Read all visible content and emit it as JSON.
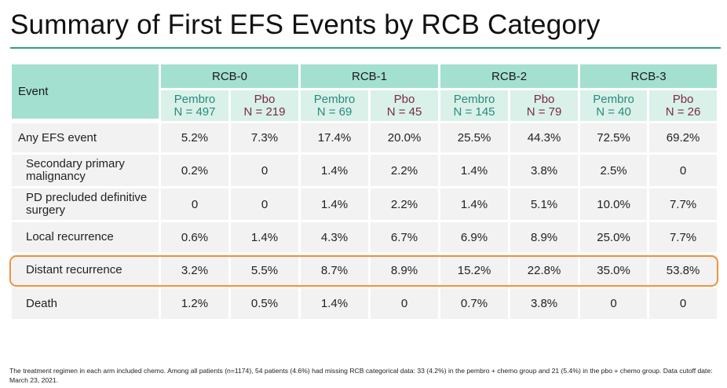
{
  "title": "Summary of First EFS Events by RCB Category",
  "colors": {
    "header": "#a3e0cf",
    "subheader": "#d9f1e9",
    "pembro_text": "#2a8a7e",
    "pbo_text": "#7b2a48",
    "highlight": "#f0923a",
    "rule": "#2aa287"
  },
  "table": {
    "event_header": "Event",
    "groups": [
      "RCB-0",
      "RCB-1",
      "RCB-2",
      "RCB-3"
    ],
    "arms": [
      {
        "name": "Pembro",
        "n": "N = 497"
      },
      {
        "name": "Pbo",
        "n": "N = 219"
      },
      {
        "name": "Pembro",
        "n": "N = 69"
      },
      {
        "name": "Pbo",
        "n": "N = 45"
      },
      {
        "name": "Pembro",
        "n": "N = 145"
      },
      {
        "name": "Pbo",
        "n": "N = 79"
      },
      {
        "name": "Pembro",
        "n": "N = 40"
      },
      {
        "name": "Pbo",
        "n": "N = 26"
      }
    ],
    "rows": [
      {
        "label": "Any EFS event",
        "values": [
          "5.2%",
          "7.3%",
          "17.4%",
          "20.0%",
          "25.5%",
          "44.3%",
          "72.5%",
          "69.2%"
        ]
      },
      {
        "label": "Secondary primary malignancy",
        "values": [
          "0.2%",
          "0",
          "1.4%",
          "2.2%",
          "1.4%",
          "3.8%",
          "2.5%",
          "0"
        ]
      },
      {
        "label": "PD precluded definitive surgery",
        "values": [
          "0",
          "0",
          "1.4%",
          "2.2%",
          "1.4%",
          "5.1%",
          "10.0%",
          "7.7%"
        ]
      },
      {
        "label": "Local recurrence",
        "values": [
          "0.6%",
          "1.4%",
          "4.3%",
          "6.7%",
          "6.9%",
          "8.9%",
          "25.0%",
          "7.7%"
        ]
      },
      {
        "label": "Distant recurrence",
        "values": [
          "3.2%",
          "5.5%",
          "8.7%",
          "8.9%",
          "15.2%",
          "22.8%",
          "35.0%",
          "53.8%"
        ]
      },
      {
        "label": "Death",
        "values": [
          "1.2%",
          "0.5%",
          "1.4%",
          "0",
          "0.7%",
          "3.8%",
          "0",
          "0"
        ]
      }
    ]
  },
  "footnote": "The treatment regimen in each arm included chemo. Among all patients (n=1174), 54 patients (4.6%) had missing RCB categorical data: 33 (4.2%) in the pembro + chemo group and 21 (5.4%) in the pbo + chemo group. Data cutoff date: March 23, 2021."
}
